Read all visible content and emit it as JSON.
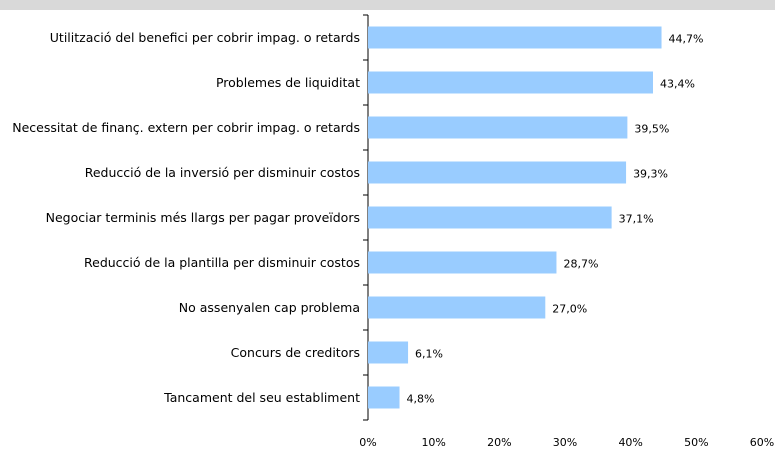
{
  "chart_data": {
    "type": "bar",
    "orientation": "horizontal",
    "categories": [
      "Utilització del benefici per cobrir impag. o retards",
      "Problemes de liquiditat",
      "Necessitat de finanç. extern per cobrir impag. o retards",
      "Reducció de la inversió per disminuir costos",
      "Negociar terminis més llargs per pagar proveïdors",
      "Reducció de la plantilla per disminuir costos",
      "No assenyalen cap problema",
      "Concurs de creditors",
      "Tancament del seu establiment"
    ],
    "values": [
      44.7,
      43.4,
      39.5,
      39.3,
      37.1,
      28.7,
      27.0,
      6.1,
      4.8
    ],
    "value_labels": [
      "44,7%",
      "43,4%",
      "39,5%",
      "39,3%",
      "37,1%",
      "28,7%",
      "27,0%",
      "6,1%",
      "4,8%"
    ],
    "color": "#99ccff",
    "xlim": [
      0,
      60
    ],
    "xticks": [
      {
        "value": 0,
        "label": "0%"
      },
      {
        "value": 10,
        "label": "10%"
      },
      {
        "value": 20,
        "label": "20%"
      },
      {
        "value": 30,
        "label": "30%"
      },
      {
        "value": 40,
        "label": "40%"
      },
      {
        "value": 50,
        "label": "50%"
      },
      {
        "value": 60,
        "label": "60%"
      }
    ]
  }
}
